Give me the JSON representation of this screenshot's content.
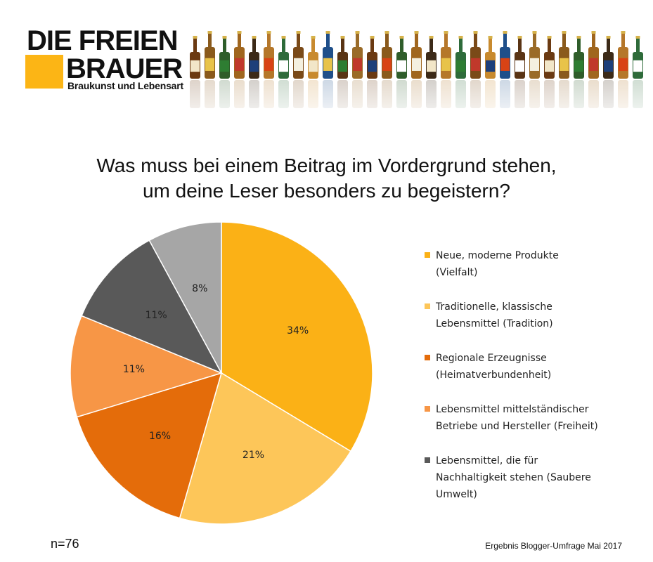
{
  "logo": {
    "line1": "DIE FREIEN",
    "line2": "BRAUER",
    "tagline": "Braukunst und Lebensart",
    "accent_color": "#fcb515"
  },
  "header_image": {
    "icon": "beer-bottles-image"
  },
  "title": {
    "line1": "Was muss bei einem Beitrag im Vordergrund stehen,",
    "line2": "um deine Leser besonders zu begeistern?"
  },
  "chart_data": {
    "type": "pie",
    "start_angle_deg": 0,
    "direction": "clockwise",
    "slices": [
      {
        "label": "Neue, moderne Produkte (Vielfalt)",
        "value": 34,
        "display": "34%",
        "color": "#fbb116"
      },
      {
        "label": "Traditionelle, klassische Lebensmittel (Tradition)",
        "value": 21,
        "display": "21%",
        "color": "#fdc659"
      },
      {
        "label": "Regionale Erzeugnisse (Heimatverbundenheit)",
        "value": 16,
        "display": "16%",
        "color": "#e46c0a"
      },
      {
        "label": "Lebensmittel mittelständischer Betriebe und Hersteller (Freiheit)",
        "value": 11,
        "display": "11%",
        "color": "#f79646"
      },
      {
        "label": "Lebensmittel, die für Nachhaltigkeit stehen (Saubere Umwelt)",
        "value": 11,
        "display": "11%",
        "color": "#595959"
      },
      {
        "label": "",
        "value": 8,
        "display": "8%",
        "color": "#a6a6a6"
      }
    ],
    "legend": {
      "placement": "right",
      "items": [
        {
          "lines": [
            "Neue, moderne Produkte",
            "(Vielfalt)"
          ],
          "color": "#fbb116"
        },
        {
          "lines": [
            "Traditionelle, klassische",
            "Lebensmittel (Tradition)"
          ],
          "color": "#fdc659"
        },
        {
          "lines": [
            "Regionale Erzeugnisse",
            "(Heimatverbundenheit)"
          ],
          "color": "#e46c0a"
        },
        {
          "lines": [
            "Lebensmittel mittelständischer",
            "Betriebe und Hersteller (Freiheit)"
          ],
          "color": "#f79646"
        },
        {
          "lines": [
            "Lebensmittel, die für",
            "Nachhaltigkeit stehen (Saubere",
            "Umwelt)"
          ],
          "color": "#595959"
        }
      ]
    }
  },
  "footer": {
    "sample_size": "n=76",
    "source": "Ergebnis Blogger-Umfrage Mai 2017"
  }
}
